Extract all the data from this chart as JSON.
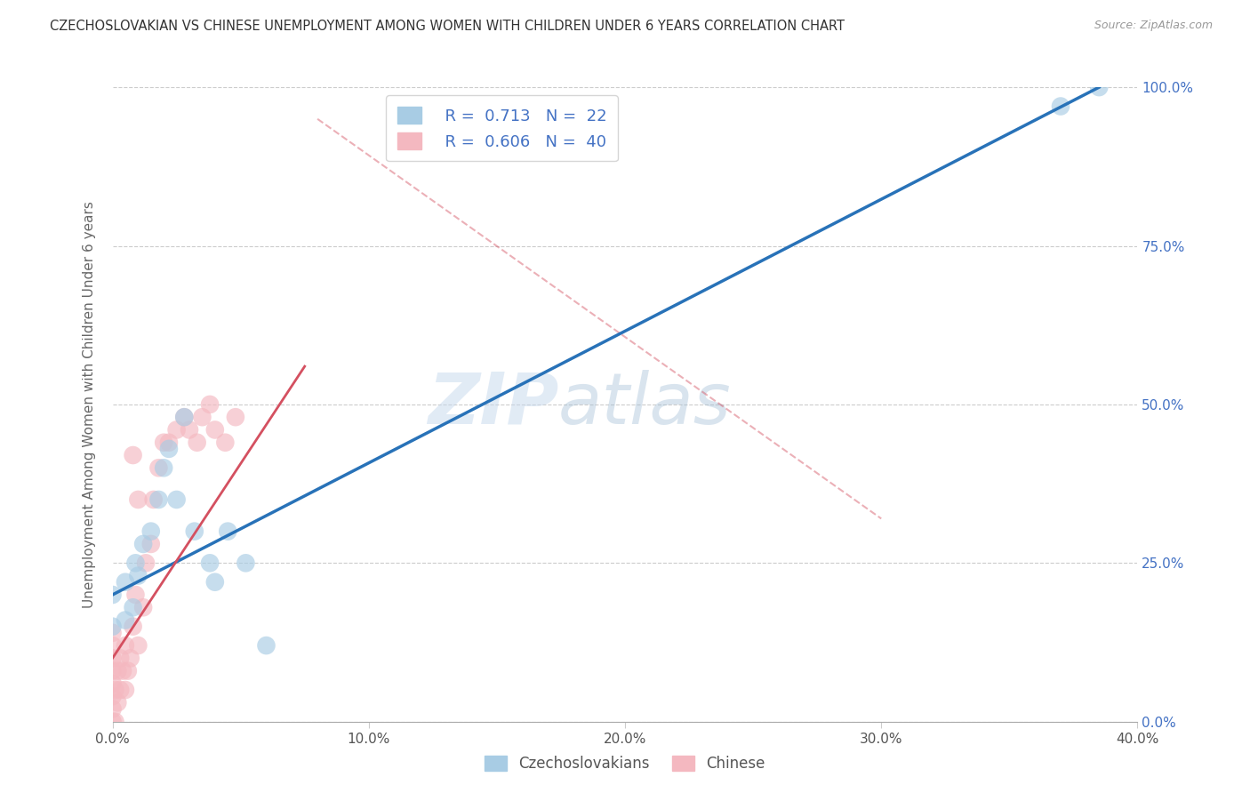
{
  "title": "CZECHOSLOVAKIAN VS CHINESE UNEMPLOYMENT AMONG WOMEN WITH CHILDREN UNDER 6 YEARS CORRELATION CHART",
  "source": "Source: ZipAtlas.com",
  "ylabel": "Unemployment Among Women with Children Under 6 years",
  "xlim": [
    0.0,
    0.4
  ],
  "ylim": [
    0.0,
    1.0
  ],
  "xtick_labels": [
    "0.0%",
    "10.0%",
    "20.0%",
    "30.0%",
    "40.0%"
  ],
  "xtick_vals": [
    0.0,
    0.1,
    0.2,
    0.3,
    0.4
  ],
  "ytick_labels": [
    "0.0%",
    "25.0%",
    "50.0%",
    "75.0%",
    "100.0%"
  ],
  "ytick_vals": [
    0.0,
    0.25,
    0.5,
    0.75,
    1.0
  ],
  "ytick_right_labels": [
    "0.0%",
    "25.0%",
    "50.0%",
    "75.0%",
    "100.0%"
  ],
  "blue_color": "#a8cce4",
  "pink_color": "#f4b8c0",
  "blue_line_color": "#2872b8",
  "pink_line_color": "#d45060",
  "legend_R_blue": "0.713",
  "legend_N_blue": "22",
  "legend_R_pink": "0.606",
  "legend_N_pink": "40",
  "legend_label_blue": "Czechoslovakians",
  "legend_label_pink": "Chinese",
  "watermark_zip": "ZIP",
  "watermark_atlas": "atlas",
  "blue_scatter_x": [
    0.0,
    0.0,
    0.005,
    0.005,
    0.008,
    0.009,
    0.01,
    0.012,
    0.015,
    0.018,
    0.02,
    0.022,
    0.025,
    0.028,
    0.032,
    0.038,
    0.04,
    0.045,
    0.052,
    0.06,
    0.37,
    0.385
  ],
  "blue_scatter_y": [
    0.2,
    0.15,
    0.16,
    0.22,
    0.18,
    0.25,
    0.23,
    0.28,
    0.3,
    0.35,
    0.4,
    0.43,
    0.35,
    0.48,
    0.3,
    0.25,
    0.22,
    0.3,
    0.25,
    0.12,
    0.97,
    1.0
  ],
  "pink_scatter_x": [
    0.0,
    0.0,
    0.0,
    0.0,
    0.0,
    0.0,
    0.0,
    0.0,
    0.001,
    0.001,
    0.002,
    0.002,
    0.003,
    0.003,
    0.004,
    0.005,
    0.005,
    0.006,
    0.007,
    0.008,
    0.008,
    0.009,
    0.01,
    0.01,
    0.012,
    0.013,
    0.015,
    0.016,
    0.018,
    0.02,
    0.022,
    0.025,
    0.028,
    0.03,
    0.033,
    0.035,
    0.038,
    0.04,
    0.044,
    0.048
  ],
  "pink_scatter_y": [
    0.0,
    0.02,
    0.04,
    0.06,
    0.08,
    0.1,
    0.12,
    0.14,
    0.0,
    0.05,
    0.03,
    0.08,
    0.05,
    0.1,
    0.08,
    0.05,
    0.12,
    0.08,
    0.1,
    0.15,
    0.42,
    0.2,
    0.12,
    0.35,
    0.18,
    0.25,
    0.28,
    0.35,
    0.4,
    0.44,
    0.44,
    0.46,
    0.48,
    0.46,
    0.44,
    0.48,
    0.5,
    0.46,
    0.44,
    0.48
  ],
  "blue_line_x": [
    0.0,
    0.385
  ],
  "blue_line_y": [
    0.2,
    1.0
  ],
  "pink_line_x": [
    0.0,
    0.075
  ],
  "pink_line_y": [
    0.1,
    0.56
  ],
  "pink_dash_line_x": [
    0.08,
    0.3
  ],
  "pink_dash_line_y": [
    0.95,
    0.32
  ],
  "background_color": "#ffffff",
  "grid_color": "#cccccc"
}
